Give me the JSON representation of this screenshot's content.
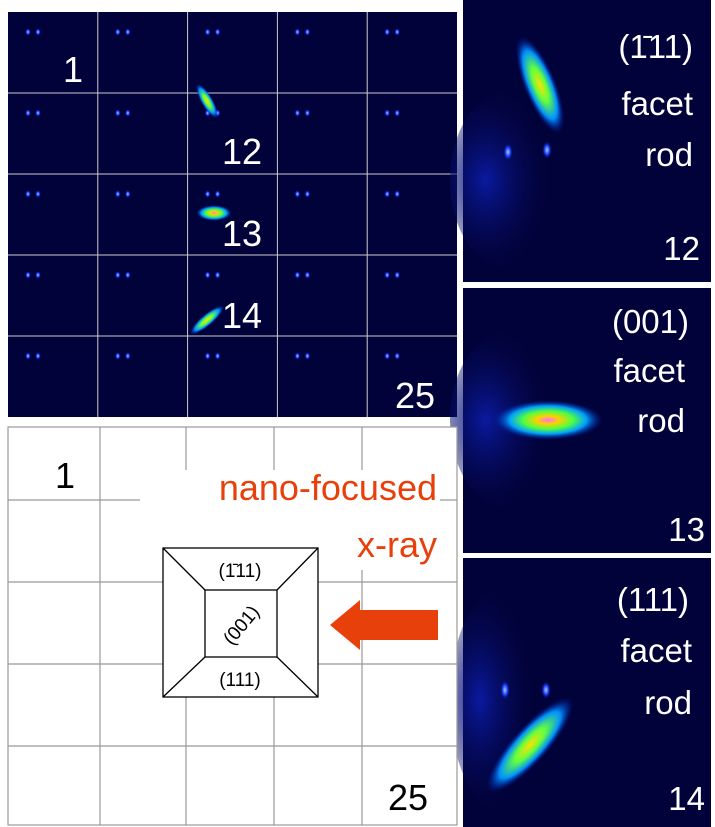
{
  "scan_grid": {
    "labels": [
      "1",
      "12",
      "13",
      "14",
      "25"
    ]
  },
  "panels": [
    {
      "facet": "(1̄11)",
      "word1": "facet",
      "word2": "rod",
      "frame": "12"
    },
    {
      "facet": "(001)",
      "word1": "facet",
      "word2": "rod",
      "frame": "13"
    },
    {
      "facet": "(111)",
      "word1": "facet",
      "word2": "rod",
      "frame": "14"
    }
  ],
  "diagram": {
    "first": "1",
    "last": "25",
    "beam": [
      "nano-focused",
      "x-ray"
    ],
    "facets": {
      "top": "(1̄11)",
      "center": "(001)",
      "bottom": "(111)"
    }
  }
}
